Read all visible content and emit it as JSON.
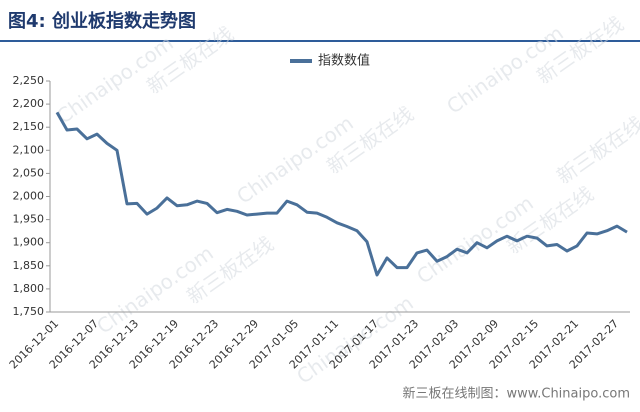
{
  "chart_data": {
    "type": "line",
    "title": "图4: 创业板指数走势图",
    "credit": "新三板在线制图：www.Chinaipo.com",
    "watermarks": [
      "Chinaipo.com",
      "新三板在线"
    ],
    "categories": [
      "2016-12-01",
      null,
      null,
      null,
      "2016-12-07",
      null,
      null,
      null,
      "2016-12-13",
      null,
      null,
      null,
      "2016-12-19",
      null,
      null,
      null,
      "2016-12-23",
      null,
      null,
      null,
      "2016-12-29",
      null,
      null,
      null,
      "2017-01-05",
      null,
      null,
      null,
      "2017-01-11",
      null,
      null,
      null,
      "2017-01-17",
      null,
      null,
      null,
      "2017-01-23",
      null,
      null,
      null,
      "2017-02-03",
      null,
      null,
      null,
      "2017-02-09",
      null,
      null,
      null,
      "2017-02-15",
      null,
      null,
      null,
      "2017-02-21",
      null,
      null,
      null,
      "2017-02-27",
      null
    ],
    "series": [
      {
        "name": "指数数值",
        "color": "#4a7099",
        "values": [
          2182,
          2144,
          2146,
          2125,
          2135,
          2115,
          2100,
          1984,
          1985,
          1962,
          1975,
          1997,
          1980,
          1982,
          1990,
          1985,
          1965,
          1972,
          1968,
          1960,
          1962,
          1964,
          1964,
          1990,
          1982,
          1966,
          1964,
          1955,
          1943,
          1935,
          1926,
          1902,
          1830,
          1867,
          1846,
          1846,
          1878,
          1884,
          1860,
          1870,
          1886,
          1878,
          1900,
          1889,
          1904,
          1914,
          1904,
          1914,
          1910,
          1893,
          1896,
          1882,
          1893,
          1921,
          1919,
          1926,
          1936,
          1923
        ]
      }
    ],
    "ylim": [
      1750,
      2250
    ],
    "yticks": [
      {
        "value": 1750,
        "label": "1,750"
      },
      {
        "value": 1800,
        "label": "1,800"
      },
      {
        "value": 1850,
        "label": "1,850"
      },
      {
        "value": 1900,
        "label": "1,900"
      },
      {
        "value": 1950,
        "label": "1,950"
      },
      {
        "value": 2000,
        "label": "2,000"
      },
      {
        "value": 2050,
        "label": "2,050"
      },
      {
        "value": 2100,
        "label": "2,100"
      },
      {
        "value": 2150,
        "label": "2,150"
      },
      {
        "value": 2200,
        "label": "2,200"
      },
      {
        "value": 2250,
        "label": "2,250"
      }
    ],
    "grid": false,
    "legend": "top"
  }
}
